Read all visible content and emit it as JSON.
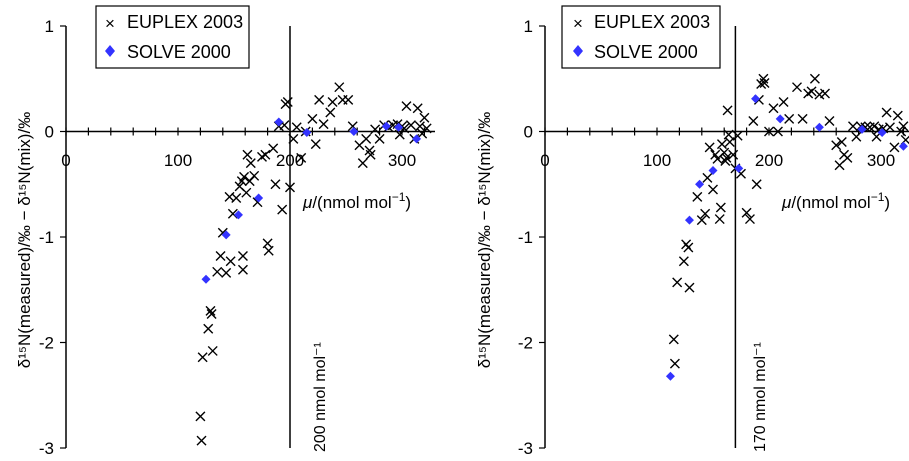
{
  "chart_data": [
    {
      "type": "scatter",
      "xlabel_italic": "μ",
      "xlabel_rest": "/(nmol mol",
      "xlabel_sup": "−1",
      "xlabel_close": ")",
      "ylabel": "δ¹⁵N(measured)/‰ − δ¹⁵N(mix)/‰",
      "xlim": [
        0,
        325
      ],
      "ylim": [
        -3,
        1
      ],
      "xticks": [
        0,
        100,
        200,
        300
      ],
      "yticks": [
        1,
        0,
        -1,
        -2,
        -3
      ],
      "xtick_labels": [
        "0",
        "100",
        "200",
        "300"
      ],
      "ytick_labels": [
        "1",
        "0",
        "-1",
        "-2",
        "-3"
      ],
      "vline_x": 200,
      "vline_label": "200 nmol mol⁻¹",
      "legend_position": "top-left",
      "series": [
        {
          "name": "EUPLEX 2003",
          "marker": "x",
          "color": "#000000",
          "points": [
            [
              120,
              -2.7
            ],
            [
              121,
              -2.93
            ],
            [
              122,
              -2.14
            ],
            [
              127,
              -1.87
            ],
            [
              129,
              -1.7
            ],
            [
              130,
              -1.73
            ],
            [
              131,
              -2.08
            ],
            [
              135,
              -1.33
            ],
            [
              138,
              -1.18
            ],
            [
              140,
              -0.96
            ],
            [
              143,
              -1.34
            ],
            [
              146,
              -0.62
            ],
            [
              147,
              -1.23
            ],
            [
              149,
              -0.78
            ],
            [
              152,
              -0.63
            ],
            [
              155,
              -0.52
            ],
            [
              157,
              -0.47
            ],
            [
              158,
              -1.31
            ],
            [
              158,
              -1.18
            ],
            [
              159,
              -0.43
            ],
            [
              161,
              -0.58
            ],
            [
              162,
              -0.22
            ],
            [
              164,
              -0.47
            ],
            [
              165,
              -0.3
            ],
            [
              168,
              -0.42
            ],
            [
              171,
              -0.67
            ],
            [
              175,
              -0.24
            ],
            [
              178,
              -0.22
            ],
            [
              180,
              -1.06
            ],
            [
              181,
              -1.13
            ],
            [
              185,
              -0.16
            ],
            [
              187,
              -0.5
            ],
            [
              190,
              0.05
            ],
            [
              193,
              -0.74
            ],
            [
              195,
              0.06
            ],
            [
              196,
              0.26
            ],
            [
              198,
              0.28
            ],
            [
              200,
              -0.53
            ],
            [
              203,
              -0.07
            ],
            [
              206,
              0.04
            ],
            [
              210,
              -0.25
            ],
            [
              214,
              0.0
            ],
            [
              220,
              0.12
            ],
            [
              223,
              -0.12
            ],
            [
              226,
              0.3
            ],
            [
              230,
              0.07
            ],
            [
              236,
              0.18
            ],
            [
              238,
              0.28
            ],
            [
              244,
              0.42
            ],
            [
              247,
              0.3
            ],
            [
              252,
              0.3
            ],
            [
              256,
              0.05
            ],
            [
              262,
              -0.13
            ],
            [
              265,
              -0.3
            ],
            [
              268,
              -0.07
            ],
            [
              271,
              -0.18
            ],
            [
              272,
              -0.22
            ],
            [
              276,
              0.02
            ],
            [
              280,
              -0.07
            ],
            [
              284,
              0.06
            ],
            [
              288,
              0.04
            ],
            [
              292,
              0.06
            ],
            [
              296,
              0.07
            ],
            [
              298,
              -0.03
            ],
            [
              300,
              0.05
            ],
            [
              302,
              0.03
            ],
            [
              304,
              0.24
            ],
            [
              308,
              0.06
            ],
            [
              311,
              -0.07
            ],
            [
              314,
              0.22
            ],
            [
              316,
              0.05
            ],
            [
              318,
              -0.02
            ],
            [
              320,
              0.13
            ],
            [
              322,
              0.03
            ]
          ]
        },
        {
          "name": "SOLVE 2000",
          "marker": "diamond",
          "color": "#3333ff",
          "points": [
            [
              125,
              -1.4
            ],
            [
              143,
              -0.98
            ],
            [
              154,
              -0.79
            ],
            [
              172,
              -0.63
            ],
            [
              190,
              0.09
            ],
            [
              215,
              -0.01
            ],
            [
              257,
              0.0
            ],
            [
              286,
              0.05
            ],
            [
              297,
              0.04
            ],
            [
              313,
              -0.07
            ]
          ]
        }
      ]
    },
    {
      "type": "scatter",
      "xlabel_italic": "μ",
      "xlabel_rest": "/(nmol mol",
      "xlabel_sup": "−1",
      "xlabel_close": ")",
      "ylabel": "δ¹⁵N(measured)/‰ − δ¹⁵N(mix)/‰",
      "xlim": [
        0,
        325
      ],
      "ylim": [
        -3,
        1
      ],
      "xticks": [
        0,
        100,
        200,
        300
      ],
      "yticks": [
        1,
        0,
        -1,
        -2,
        -3
      ],
      "xtick_labels": [
        "0",
        "100",
        "200",
        "300"
      ],
      "ytick_labels": [
        "1",
        "0",
        "-1",
        "-2",
        "-3"
      ],
      "vline_x": 170,
      "vline_label": "170 nmol mol⁻¹",
      "legend_position": "top-left",
      "series": [
        {
          "name": "EUPLEX 2003",
          "marker": "x",
          "color": "#000000",
          "points": [
            [
              115,
              -1.97
            ],
            [
              116,
              -2.2
            ],
            [
              118,
              -1.43
            ],
            [
              124,
              -1.23
            ],
            [
              126,
              -1.07
            ],
            [
              128,
              -1.1
            ],
            [
              129,
              -1.48
            ],
            [
              136,
              -0.62
            ],
            [
              140,
              -0.84
            ],
            [
              143,
              -0.78
            ],
            [
              145,
              -0.44
            ],
            [
              147,
              -0.15
            ],
            [
              150,
              -0.55
            ],
            [
              152,
              -0.22
            ],
            [
              154,
              -0.26
            ],
            [
              156,
              -0.83
            ],
            [
              157,
              -0.72
            ],
            [
              158,
              -0.12
            ],
            [
              160,
              -0.2
            ],
            [
              161,
              -0.28
            ],
            [
              162,
              -0.25
            ],
            [
              163,
              0.2
            ],
            [
              164,
              -0.03
            ],
            [
              165,
              -0.1
            ],
            [
              168,
              -0.22
            ],
            [
              170,
              -0.35
            ],
            [
              172,
              -0.04
            ],
            [
              175,
              -0.4
            ],
            [
              180,
              -0.77
            ],
            [
              183,
              -0.83
            ],
            [
              186,
              0.1
            ],
            [
              189,
              -0.5
            ],
            [
              191,
              0.3
            ],
            [
              193,
              0.45
            ],
            [
              195,
              0.5
            ],
            [
              196,
              0.46
            ],
            [
              200,
              0.0
            ],
            [
              204,
              0.22
            ],
            [
              208,
              0.0
            ],
            [
              213,
              0.28
            ],
            [
              218,
              0.12
            ],
            [
              225,
              0.42
            ],
            [
              230,
              0.12
            ],
            [
              235,
              0.36
            ],
            [
              238,
              0.38
            ],
            [
              241,
              0.5
            ],
            [
              245,
              0.35
            ],
            [
              250,
              0.36
            ],
            [
              254,
              0.1
            ],
            [
              260,
              -0.13
            ],
            [
              263,
              -0.32
            ],
            [
              265,
              -0.1
            ],
            [
              267,
              -0.22
            ],
            [
              270,
              -0.25
            ],
            [
              275,
              0.05
            ],
            [
              278,
              -0.05
            ],
            [
              282,
              0.05
            ],
            [
              286,
              0.04
            ],
            [
              290,
              0.04
            ],
            [
              294,
              0.05
            ],
            [
              296,
              -0.05
            ],
            [
              298,
              0.02
            ],
            [
              302,
              0.03
            ],
            [
              305,
              0.18
            ],
            [
              308,
              0.04
            ],
            [
              312,
              -0.15
            ],
            [
              315,
              0.15
            ],
            [
              318,
              0.0
            ],
            [
              320,
              0.05
            ],
            [
              322,
              -0.08
            ]
          ]
        },
        {
          "name": "SOLVE 2000",
          "marker": "diamond",
          "color": "#3333ff",
          "points": [
            [
              112,
              -2.32
            ],
            [
              129,
              -0.84
            ],
            [
              138,
              -0.5
            ],
            [
              150,
              -0.37
            ],
            [
              173,
              -0.35
            ],
            [
              188,
              0.31
            ],
            [
              210,
              0.12
            ],
            [
              245,
              0.04
            ],
            [
              283,
              0.02
            ],
            [
              301,
              -0.01
            ],
            [
              320,
              -0.14
            ]
          ]
        }
      ]
    }
  ]
}
